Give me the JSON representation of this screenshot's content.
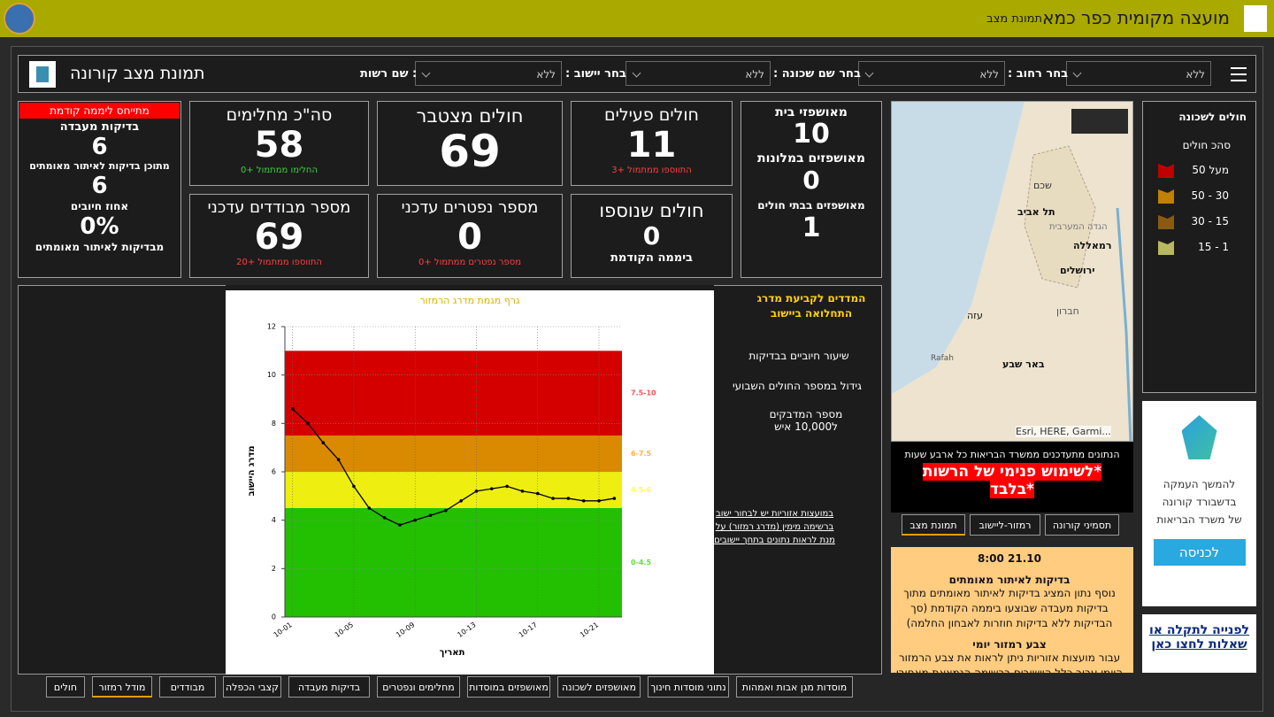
{
  "header": {
    "title": "מועצה מקומית כפר כמא",
    "subtitle": "תמונת מצב"
  },
  "toolbar": {
    "title": "תמונת מצב קורונה",
    "filters": [
      {
        "label": "בחר רחוב :",
        "value": "ללא"
      },
      {
        "label": "בחר שם שכונה :",
        "value": "ללא"
      },
      {
        "label": "בחר יישוב :",
        "value": "ללא"
      },
      {
        "label": ": שם רשות",
        "value": "ללא"
      }
    ]
  },
  "lab_card": {
    "badge": "מתייחס ליממה קודמת",
    "tests_label": "בדיקות מעבדה",
    "tests_value": "6",
    "confirm_label": "מתוכן בדיקות לאיתור מאומתים",
    "confirm_value": "6",
    "rate_label": "אחוז חיובים",
    "rate_value": "0%",
    "rate_note": "מבדיקות לאיתור מאומתים"
  },
  "cards": [
    {
      "title": "סה\"כ מחלימים",
      "value": "58",
      "note": "החלימו ממתמול +0"
    },
    {
      "title": "חולים מצטבר",
      "value": "69"
    },
    {
      "title": "חולים פעילים",
      "value": "11",
      "note": "התווספו ממתמול +3"
    },
    {
      "title": "מספר מבודדים עדכני",
      "value": "69",
      "note": "התווספו ממתמול +20"
    },
    {
      "title": "מספר נפטרים עדכני",
      "value": "0",
      "note": "מספר נפטרים ממתמול +0"
    },
    {
      "title": "חולים שנוספו",
      "value": "0",
      "note": "ביממה הקודמת"
    }
  ],
  "hospital_card": [
    {
      "label": "מאושפזי בית",
      "value": "10"
    },
    {
      "label": "מאושפזים במלונות",
      "value": "0"
    },
    {
      "label": "מאושפזים בבתי חולים",
      "value": "1"
    }
  ],
  "legend": {
    "title": "חולים לשכונה",
    "subtitle": "סהכ חולים",
    "items": [
      {
        "label": "מעל 50",
        "color": "#c00000"
      },
      {
        "label": "30 - 50",
        "color": "#c08000"
      },
      {
        "label": "15 - 30",
        "color": "#8a5a10"
      },
      {
        "label": "1 - 15",
        "color": "#b8b860"
      }
    ]
  },
  "map": {
    "places": [
      "שכם",
      "תל אביב",
      "הגדה המערבית",
      "רמאללה",
      "ירושלים",
      "חברון",
      "עזה",
      "באר שבע",
      "Rafah"
    ],
    "attribution": "Esri, HERE, Garmi...",
    "update_note": "הנתונים מתעדכנים ממשרד הבריאות כל ארבע שעות",
    "warning_1": "*לשימוש פנימי של הרשות",
    "warning_2": "*בלבד"
  },
  "map_tabs": [
    "תסמיני קורונה",
    "רמזור-ליישוב",
    "תמונת מצב"
  ],
  "notes": {
    "date": "21.10 8:00",
    "heading_1": "בדיקות לאיתור מאומתים",
    "text_1": "נוסף נתון המציג בדיקות לאיתור מאומתים מתוך בדיקות מעבדה שבוצעו ביממה הקודמת (סך הבדיקות ללא בדיקות חוזרות לאבחון החלמה)",
    "heading_2": "צבע רמזור יומי",
    "text_2": "עבור מועצות אזוריות ניתן לראות את צבע הרמזור היומי עבור כלל היישובים ברשימה הנמצאת מאחורי המפה בכרטיסיית \"רמזור\""
  },
  "promo": {
    "text": "להמשך העמקה בדשבורד קורונה של משרד הבריאות",
    "button": "לכניסה"
  },
  "support": {
    "link": "לפנייה לתקלה או שאלות לחצו כאן"
  },
  "indicators": {
    "title": "המדדים לקביעת מדרג התחלואה ביישוב",
    "items": [
      "שיעור חיוביים בבדיקות",
      "גידול במספר החולים השבועי",
      "מספר המדבקים ל10,000 איש"
    ],
    "link": "במועצות אזוריות יש לבחור ישוב ברשימה מימין (מדרג רמזור) על מנת לראות נתונים בתחך יישובים"
  },
  "bottom_tabs": [
    "מוסדות מגן אבות ואמהות",
    "נתוני מוסדות חינוך",
    "מאושפזים לשכונה",
    "מאושפזים במוסדות",
    "מחלימים ונפטרים",
    "בדיקות מעבדה",
    "קצבי הכפלה",
    "מבודדים",
    "מודל רמזור",
    "חולים"
  ],
  "chart_data": {
    "type": "line",
    "title": "גרף מגמת מדרג הרמזור",
    "x_label": "תאריך",
    "y_label": "מדרג היישוב",
    "categories": [
      "10-01",
      null,
      null,
      null,
      "10-05",
      null,
      null,
      null,
      "10-09",
      null,
      null,
      null,
      "10-13",
      null,
      null,
      null,
      "10-17",
      null,
      null,
      null,
      "10-21",
      null
    ],
    "series": [
      {
        "name": "מדרג",
        "color": "#000000",
        "values": [
          8.6,
          8.0,
          7.2,
          6.5,
          5.4,
          4.5,
          4.1,
          3.8,
          4.0,
          4.2,
          4.4,
          4.8,
          5.2,
          5.3,
          5.4,
          5.2,
          5.1,
          4.9,
          4.9,
          4.8,
          4.8,
          4.9
        ]
      }
    ],
    "bands": [
      {
        "from": 7.5,
        "to": 11,
        "color": "#d40000",
        "label": "7.5-10",
        "label_color": "#ff5050"
      },
      {
        "from": 6,
        "to": 7.5,
        "color": "#d98a00",
        "label": "6-7.5",
        "label_color": "#ffb040"
      },
      {
        "from": 4.5,
        "to": 6,
        "color": "#eeee10",
        "label": "4.5-6",
        "label_color": "#ffff40"
      },
      {
        "from": 0,
        "to": 4.5,
        "color": "#22c000",
        "label": "0-4.5",
        "label_color": "#60e040"
      }
    ],
    "ylim": [
      0,
      12
    ],
    "yticks": [
      0,
      2,
      4,
      6,
      8,
      10,
      12
    ],
    "grid": true
  }
}
